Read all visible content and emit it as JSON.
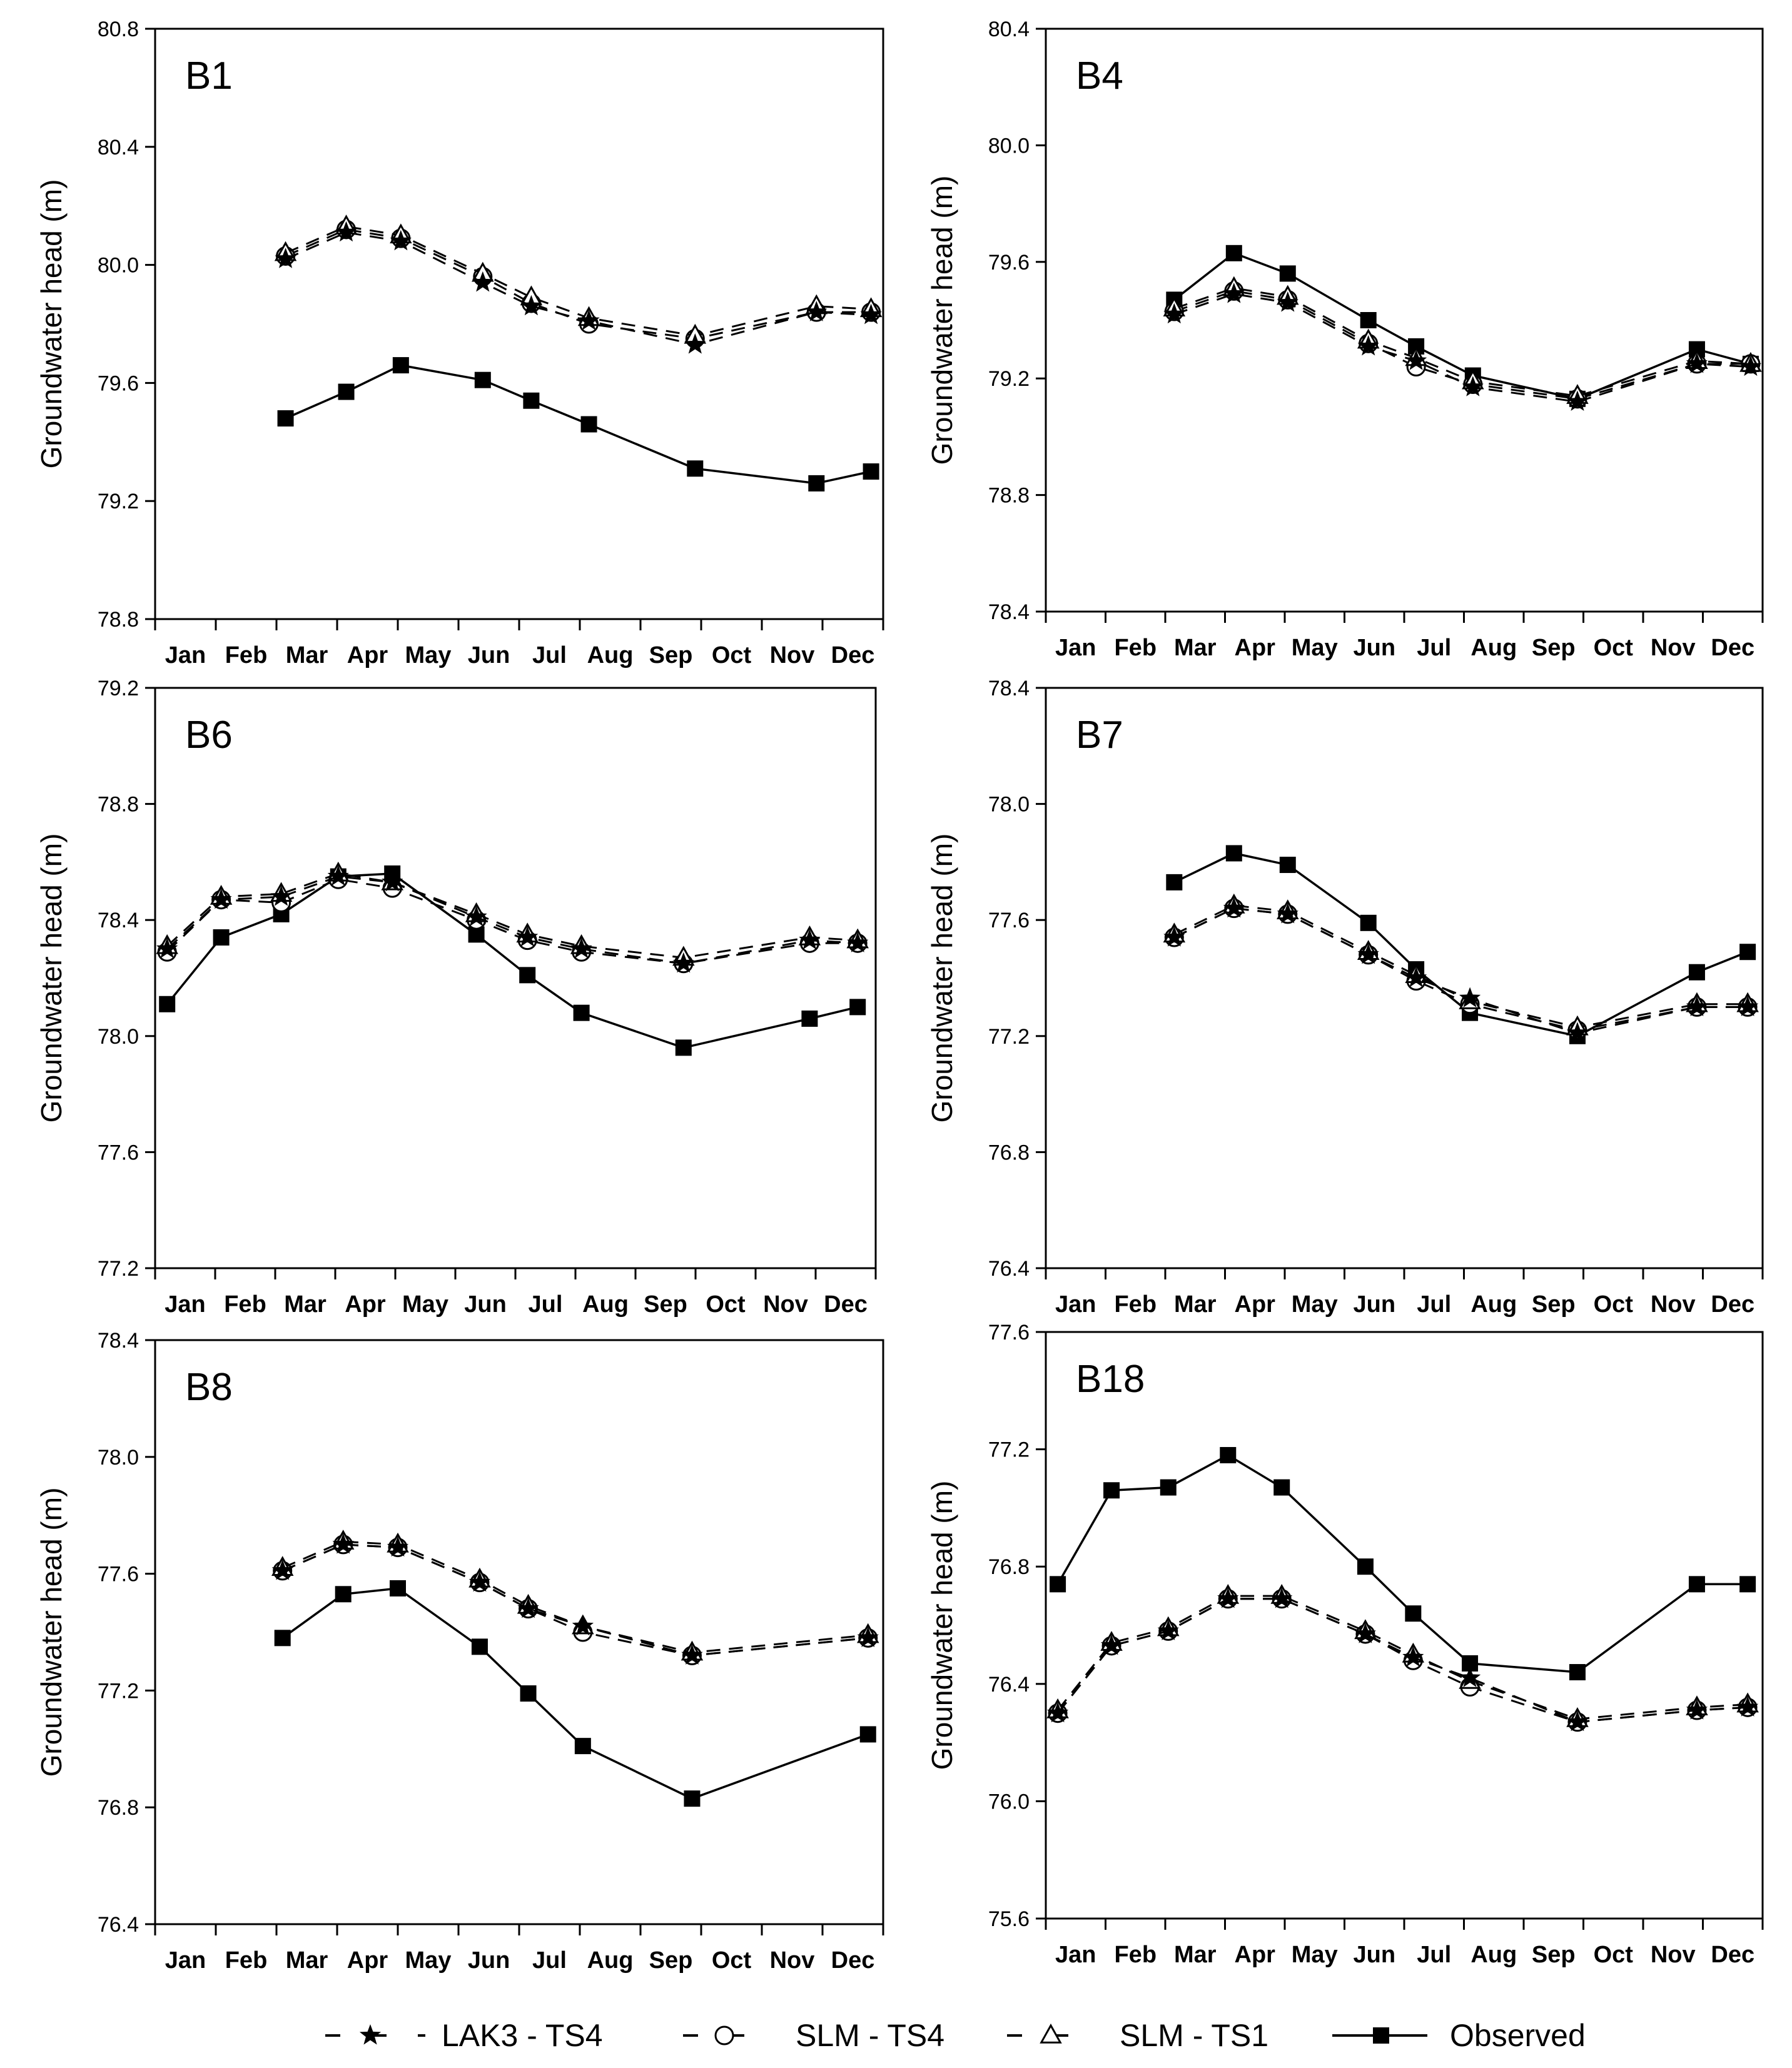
{
  "legend": [
    {
      "key": "lak3",
      "label": "LAK3 - TS4",
      "marker": "star",
      "dash": true
    },
    {
      "key": "slm4",
      "label": "SLM - TS4",
      "marker": "circle",
      "dash": true
    },
    {
      "key": "slm1",
      "label": "SLM - TS1",
      "marker": "triangle",
      "dash": true
    },
    {
      "key": "obs",
      "label": "Observed",
      "marker": "square",
      "dash": false
    }
  ],
  "chart_data": [
    {
      "type": "line",
      "title": "B1",
      "ylabel": "Groundwater head (m)",
      "ylim": [
        78.8,
        80.8
      ],
      "yticks": [
        78.8,
        79.2,
        79.6,
        80.0,
        80.4,
        80.8
      ],
      "xlim": [
        0,
        12
      ],
      "xticks": [
        "Jan",
        "Feb",
        "Mar",
        "Apr",
        "May",
        "Jun",
        "Jul",
        "Aug",
        "Sep",
        "Oct",
        "Nov",
        "Dec"
      ],
      "series": [
        {
          "key": "lak3",
          "x": [
            2.15,
            3.15,
            4.05,
            5.4,
            6.2,
            7.15,
            8.9,
            10.9,
            11.8
          ],
          "y": [
            80.02,
            80.11,
            80.08,
            79.94,
            79.86,
            79.81,
            79.73,
            79.84,
            79.83
          ]
        },
        {
          "key": "slm4",
          "x": [
            2.15,
            3.15,
            4.05,
            5.4,
            6.2,
            7.15,
            8.9,
            10.9,
            11.8
          ],
          "y": [
            80.03,
            80.12,
            80.09,
            79.96,
            79.87,
            79.8,
            79.75,
            79.84,
            79.84
          ]
        },
        {
          "key": "slm1",
          "x": [
            2.15,
            3.15,
            4.05,
            5.4,
            6.2,
            7.15,
            8.9,
            10.9,
            11.8
          ],
          "y": [
            80.04,
            80.13,
            80.1,
            79.97,
            79.89,
            79.82,
            79.76,
            79.86,
            79.85
          ]
        },
        {
          "key": "obs",
          "x": [
            2.15,
            3.15,
            4.05,
            5.4,
            6.2,
            7.15,
            8.9,
            10.9,
            11.8
          ],
          "y": [
            79.48,
            79.57,
            79.66,
            79.61,
            79.54,
            79.46,
            79.31,
            79.26,
            79.3
          ]
        }
      ]
    },
    {
      "type": "line",
      "title": "B4",
      "ylabel": "Groundwater head (m)",
      "ylim": [
        78.4,
        80.4
      ],
      "yticks": [
        78.4,
        78.8,
        79.2,
        79.6,
        80.0,
        80.4
      ],
      "xlim": [
        0,
        12
      ],
      "xticks": [
        "Jan",
        "Feb",
        "Mar",
        "Apr",
        "May",
        "Jun",
        "Jul",
        "Aug",
        "Sep",
        "Oct",
        "Nov",
        "Dec"
      ],
      "series": [
        {
          "key": "lak3",
          "x": [
            2.15,
            3.15,
            4.05,
            5.4,
            6.2,
            7.15,
            8.9,
            10.9,
            11.8
          ],
          "y": [
            79.42,
            79.49,
            79.46,
            79.31,
            79.26,
            79.17,
            79.12,
            79.25,
            79.24
          ]
        },
        {
          "key": "slm4",
          "x": [
            2.15,
            3.15,
            4.05,
            5.4,
            6.2,
            7.15,
            8.9,
            10.9,
            11.8
          ],
          "y": [
            79.43,
            79.5,
            79.47,
            79.32,
            79.24,
            79.18,
            79.13,
            79.25,
            79.25
          ]
        },
        {
          "key": "slm1",
          "x": [
            2.15,
            3.15,
            4.05,
            5.4,
            6.2,
            7.15,
            8.9,
            10.9,
            11.8
          ],
          "y": [
            79.44,
            79.51,
            79.48,
            79.33,
            79.27,
            79.19,
            79.14,
            79.26,
            79.25
          ]
        },
        {
          "key": "obs",
          "x": [
            2.15,
            3.15,
            4.05,
            5.4,
            6.2,
            7.15,
            8.9,
            10.9,
            11.8
          ],
          "y": [
            79.47,
            79.63,
            79.56,
            79.4,
            79.31,
            79.21,
            79.13,
            79.3,
            79.25
          ]
        }
      ]
    },
    {
      "type": "line",
      "title": "B6",
      "ylabel": "Groundwater head (m)",
      "ylim": [
        77.2,
        79.2
      ],
      "yticks": [
        77.2,
        77.6,
        78.0,
        78.4,
        78.8,
        79.2
      ],
      "xlim": [
        0,
        12
      ],
      "xticks": [
        "Jan",
        "Feb",
        "Mar",
        "Apr",
        "May",
        "Jun",
        "Jul",
        "Aug",
        "Sep",
        "Oct",
        "Nov",
        "Dec"
      ],
      "series": [
        {
          "key": "lak3",
          "x": [
            0.2,
            1.1,
            2.1,
            3.05,
            3.95,
            5.35,
            6.2,
            7.1,
            8.8,
            10.9,
            11.7
          ],
          "y": [
            78.3,
            78.47,
            78.48,
            78.55,
            78.53,
            78.41,
            78.34,
            78.3,
            78.25,
            78.33,
            78.32
          ]
        },
        {
          "key": "slm4",
          "x": [
            0.2,
            1.1,
            2.1,
            3.05,
            3.95,
            5.35,
            6.2,
            7.1,
            8.8,
            10.9,
            11.7
          ],
          "y": [
            78.29,
            78.47,
            78.46,
            78.54,
            78.51,
            78.4,
            78.33,
            78.29,
            78.25,
            78.32,
            78.32
          ]
        },
        {
          "key": "slm1",
          "x": [
            0.2,
            1.1,
            2.1,
            3.05,
            3.95,
            5.35,
            6.2,
            7.1,
            8.8,
            10.9,
            11.7
          ],
          "y": [
            78.31,
            78.48,
            78.49,
            78.56,
            78.53,
            78.42,
            78.35,
            78.31,
            78.27,
            78.34,
            78.33
          ]
        },
        {
          "key": "obs",
          "x": [
            0.2,
            1.1,
            2.1,
            3.05,
            3.95,
            5.35,
            6.2,
            7.1,
            8.8,
            10.9,
            11.7
          ],
          "y": [
            78.11,
            78.34,
            78.42,
            78.55,
            78.56,
            78.35,
            78.21,
            78.08,
            77.96,
            78.06,
            78.1
          ]
        }
      ]
    },
    {
      "type": "line",
      "title": "B7",
      "ylabel": "Groundwater head (m)",
      "ylim": [
        76.4,
        78.4
      ],
      "yticks": [
        76.4,
        76.8,
        77.2,
        77.6,
        78.0,
        78.4
      ],
      "xlim": [
        0,
        12
      ],
      "xticks": [
        "Jan",
        "Feb",
        "Mar",
        "Apr",
        "May",
        "Jun",
        "Jul",
        "Aug",
        "Sep",
        "Oct",
        "Nov",
        "Dec"
      ],
      "series": [
        {
          "key": "lak3",
          "x": [
            2.15,
            3.15,
            4.05,
            5.4,
            6.2,
            7.1,
            8.9,
            10.9,
            11.75
          ],
          "y": [
            77.54,
            77.64,
            77.62,
            77.48,
            77.4,
            77.33,
            77.21,
            77.3,
            77.3
          ]
        },
        {
          "key": "slm4",
          "x": [
            2.15,
            3.15,
            4.05,
            5.4,
            6.2,
            7.1,
            8.9,
            10.9,
            11.75
          ],
          "y": [
            77.54,
            77.64,
            77.62,
            77.48,
            77.39,
            77.31,
            77.22,
            77.3,
            77.3
          ]
        },
        {
          "key": "slm1",
          "x": [
            2.15,
            3.15,
            4.05,
            5.4,
            6.2,
            7.1,
            8.9,
            10.9,
            11.75
          ],
          "y": [
            77.55,
            77.65,
            77.63,
            77.49,
            77.41,
            77.32,
            77.23,
            77.31,
            77.31
          ]
        },
        {
          "key": "obs",
          "x": [
            2.15,
            3.15,
            4.05,
            5.4,
            6.2,
            7.1,
            8.9,
            10.9,
            11.75
          ],
          "y": [
            77.73,
            77.83,
            77.79,
            77.59,
            77.43,
            77.28,
            77.2,
            77.42,
            77.49
          ]
        }
      ]
    },
    {
      "type": "line",
      "title": "B8",
      "ylabel": "Groundwater head (m)",
      "ylim": [
        76.4,
        78.4
      ],
      "yticks": [
        76.4,
        76.8,
        77.2,
        77.6,
        78.0,
        78.4
      ],
      "xlim": [
        0,
        12
      ],
      "xticks": [
        "Jan",
        "Feb",
        "Mar",
        "Apr",
        "May",
        "Jun",
        "Jul",
        "Aug",
        "Sep",
        "Oct",
        "Nov",
        "Dec"
      ],
      "series": [
        {
          "key": "lak3",
          "x": [
            2.1,
            3.1,
            4.0,
            5.35,
            6.15,
            7.05,
            8.85,
            11.75
          ],
          "y": [
            77.61,
            77.7,
            77.69,
            77.57,
            77.48,
            77.42,
            77.32,
            77.38
          ]
        },
        {
          "key": "slm4",
          "x": [
            2.1,
            3.1,
            4.0,
            5.35,
            6.15,
            7.05,
            8.85,
            11.75
          ],
          "y": [
            77.61,
            77.7,
            77.69,
            77.57,
            77.48,
            77.4,
            77.32,
            77.38
          ]
        },
        {
          "key": "slm1",
          "x": [
            2.1,
            3.1,
            4.0,
            5.35,
            6.15,
            7.05,
            8.85,
            11.75
          ],
          "y": [
            77.62,
            77.71,
            77.7,
            77.58,
            77.49,
            77.42,
            77.33,
            77.39
          ]
        },
        {
          "key": "obs",
          "x": [
            2.1,
            3.1,
            4.0,
            5.35,
            6.15,
            7.05,
            8.85,
            11.75
          ],
          "y": [
            77.38,
            77.53,
            77.55,
            77.35,
            77.19,
            77.01,
            76.83,
            77.05
          ]
        }
      ]
    },
    {
      "type": "line",
      "title": "B18",
      "ylabel": "Groundwater head (m)",
      "ylim": [
        75.6,
        77.6
      ],
      "yticks": [
        75.6,
        76.0,
        76.4,
        76.8,
        77.2,
        77.6
      ],
      "xlim": [
        0,
        12
      ],
      "xticks": [
        "Jan",
        "Feb",
        "Mar",
        "Apr",
        "May",
        "Jun",
        "Jul",
        "Aug",
        "Sep",
        "Oct",
        "Nov",
        "Dec"
      ],
      "series": [
        {
          "key": "lak3",
          "x": [
            0.2,
            1.1,
            2.05,
            3.05,
            3.95,
            5.35,
            6.15,
            7.1,
            8.9,
            10.9,
            11.75
          ],
          "y": [
            76.3,
            76.53,
            76.58,
            76.69,
            76.69,
            76.57,
            76.49,
            76.42,
            76.27,
            76.31,
            76.32
          ]
        },
        {
          "key": "slm4",
          "x": [
            0.2,
            1.1,
            2.05,
            3.05,
            3.95,
            5.35,
            6.15,
            7.1,
            8.9,
            10.9,
            11.75
          ],
          "y": [
            76.3,
            76.53,
            76.58,
            76.69,
            76.69,
            76.57,
            76.48,
            76.39,
            76.27,
            76.31,
            76.32
          ]
        },
        {
          "key": "slm1",
          "x": [
            0.2,
            1.1,
            2.05,
            3.05,
            3.95,
            5.35,
            6.15,
            7.1,
            8.9,
            10.9,
            11.75
          ],
          "y": [
            76.31,
            76.54,
            76.59,
            76.7,
            76.7,
            76.58,
            76.5,
            76.41,
            76.28,
            76.32,
            76.33
          ]
        },
        {
          "key": "obs",
          "x": [
            0.2,
            1.1,
            2.05,
            3.05,
            3.95,
            5.35,
            6.15,
            7.1,
            8.9,
            10.9,
            11.75
          ],
          "y": [
            76.74,
            77.06,
            77.07,
            77.18,
            77.07,
            76.8,
            76.64,
            76.47,
            76.44,
            76.74,
            76.74
          ]
        }
      ]
    }
  ]
}
